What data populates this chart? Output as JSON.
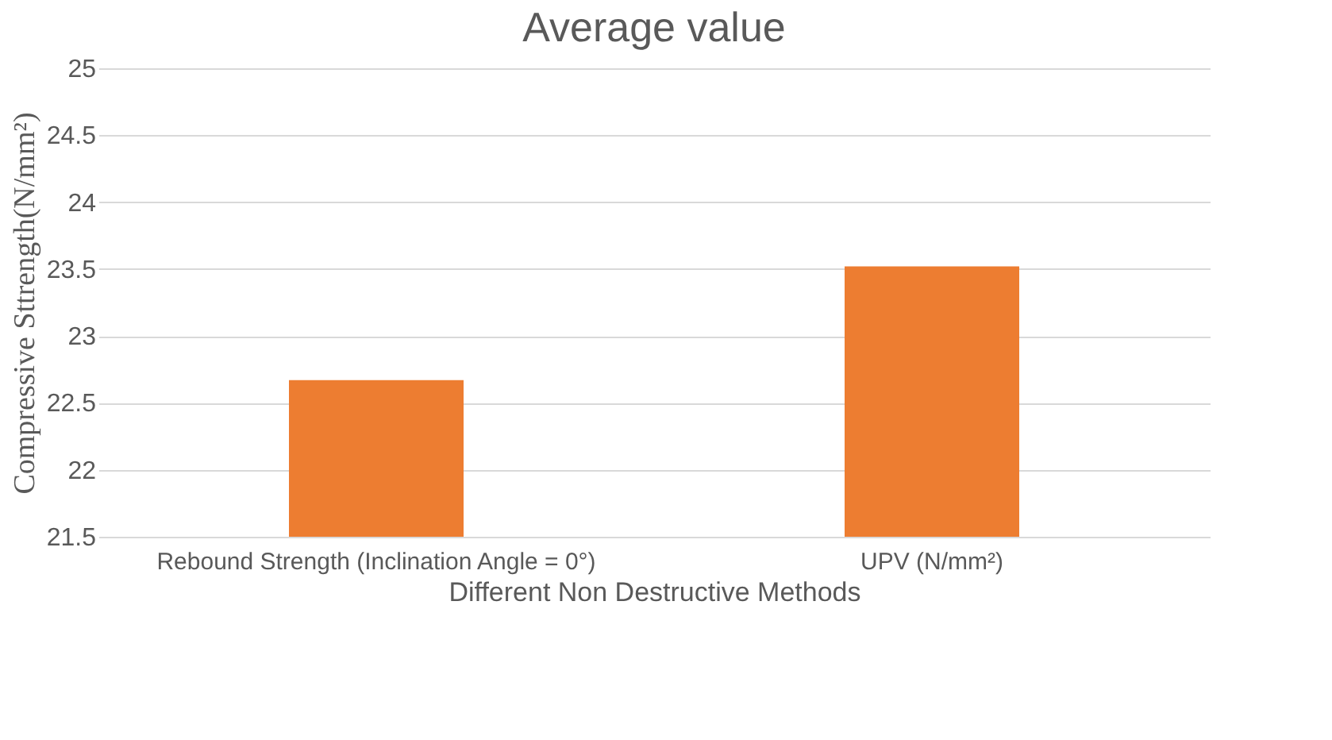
{
  "chart_data": {
    "type": "bar",
    "title": "Average value",
    "xlabel": "Different Non Destructive Methods",
    "ylabel": "Compressive Sttrength(N/mm²)",
    "categories": [
      "Rebound Strength (Inclination Angle = 0°)",
      "UPV (N/mm²)"
    ],
    "values": [
      22.67,
      23.52
    ],
    "color": "#ed7d31",
    "ylim": [
      21.5,
      25
    ],
    "yticks": [
      21.5,
      22,
      22.5,
      23,
      23.5,
      24,
      24.5,
      25
    ],
    "grid": "y"
  }
}
